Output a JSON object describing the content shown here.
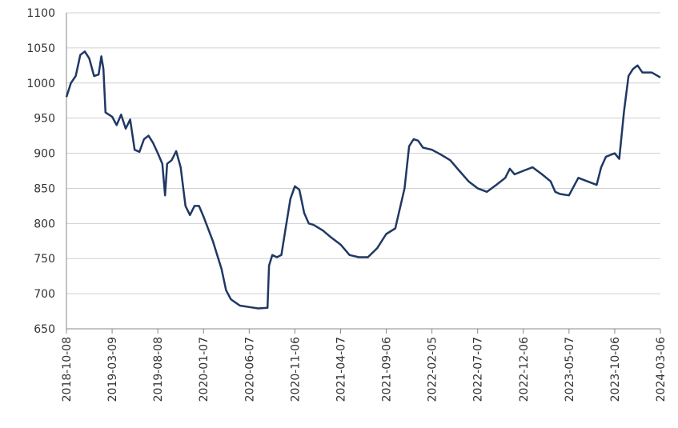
{
  "chart_data": {
    "type": "line",
    "x": [
      "2018-10-08",
      "2018-10-23",
      "2018-11-08",
      "2018-11-23",
      "2018-12-08",
      "2018-12-23",
      "2019-01-08",
      "2019-01-23",
      "2019-02-01",
      "2019-02-08",
      "2019-02-15",
      "2019-03-09",
      "2019-03-24",
      "2019-04-08",
      "2019-04-23",
      "2019-05-08",
      "2019-05-23",
      "2019-06-08",
      "2019-06-23",
      "2019-07-08",
      "2019-07-23",
      "2019-08-08",
      "2019-08-23",
      "2019-09-01",
      "2019-09-08",
      "2019-09-23",
      "2019-10-08",
      "2019-10-23",
      "2019-11-08",
      "2019-11-23",
      "2019-12-08",
      "2019-12-23",
      "2020-01-07",
      "2020-02-07",
      "2020-03-07",
      "2020-03-22",
      "2020-04-07",
      "2020-05-07",
      "2020-06-07",
      "2020-07-07",
      "2020-08-07",
      "2020-08-12",
      "2020-08-23",
      "2020-09-07",
      "2020-09-22",
      "2020-10-07",
      "2020-10-22",
      "2020-11-06",
      "2020-11-21",
      "2020-12-07",
      "2020-12-22",
      "2021-01-07",
      "2021-02-07",
      "2021-03-07",
      "2021-04-07",
      "2021-05-07",
      "2021-06-07",
      "2021-07-07",
      "2021-08-07",
      "2021-09-06",
      "2021-10-06",
      "2021-11-06",
      "2021-11-21",
      "2021-12-06",
      "2021-12-21",
      "2022-01-06",
      "2022-02-05",
      "2022-03-07",
      "2022-04-07",
      "2022-05-07",
      "2022-06-07",
      "2022-07-07",
      "2022-08-07",
      "2022-09-07",
      "2022-10-07",
      "2022-10-22",
      "2022-11-07",
      "2022-12-06",
      "2023-01-06",
      "2023-02-06",
      "2023-03-07",
      "2023-03-22",
      "2023-04-07",
      "2023-05-07",
      "2023-06-07",
      "2023-07-07",
      "2023-08-07",
      "2023-08-22",
      "2023-09-07",
      "2023-10-06",
      "2023-10-21",
      "2023-11-06",
      "2023-11-21",
      "2023-12-06",
      "2023-12-21",
      "2024-01-06",
      "2024-02-06",
      "2024-03-06"
    ],
    "values": [
      980,
      1000,
      1010,
      1040,
      1045,
      1035,
      1010,
      1012,
      1038,
      1020,
      958,
      952,
      940,
      955,
      935,
      948,
      905,
      902,
      920,
      925,
      915,
      900,
      885,
      840,
      885,
      890,
      903,
      880,
      825,
      812,
      825,
      825,
      810,
      775,
      735,
      705,
      692,
      683,
      681,
      679,
      680,
      740,
      755,
      752,
      755,
      795,
      835,
      853,
      848,
      815,
      800,
      798,
      790,
      780,
      770,
      755,
      752,
      752,
      765,
      785,
      793,
      850,
      910,
      920,
      918,
      908,
      905,
      898,
      890,
      875,
      860,
      850,
      845,
      855,
      865,
      878,
      870,
      875,
      880,
      870,
      860,
      845,
      842,
      840,
      865,
      860,
      855,
      880,
      895,
      900,
      892,
      960,
      1010,
      1020,
      1025,
      1015,
      1015,
      1008
    ],
    "color": "#1f3864",
    "xlim": [
      "2018-10-08",
      "2024-03-06"
    ],
    "xticks": [
      "2018-10-08",
      "2019-03-09",
      "2019-08-08",
      "2020-01-07",
      "2020-06-07",
      "2020-11-06",
      "2021-04-07",
      "2021-09-06",
      "2022-02-05",
      "2022-07-07",
      "2022-12-06",
      "2023-05-07",
      "2023-10-06",
      "2024-03-06"
    ],
    "ylim": [
      650,
      1100
    ],
    "yticks": [
      650,
      700,
      750,
      800,
      850,
      900,
      950,
      1000,
      1050,
      1100
    ],
    "grid": true
  }
}
